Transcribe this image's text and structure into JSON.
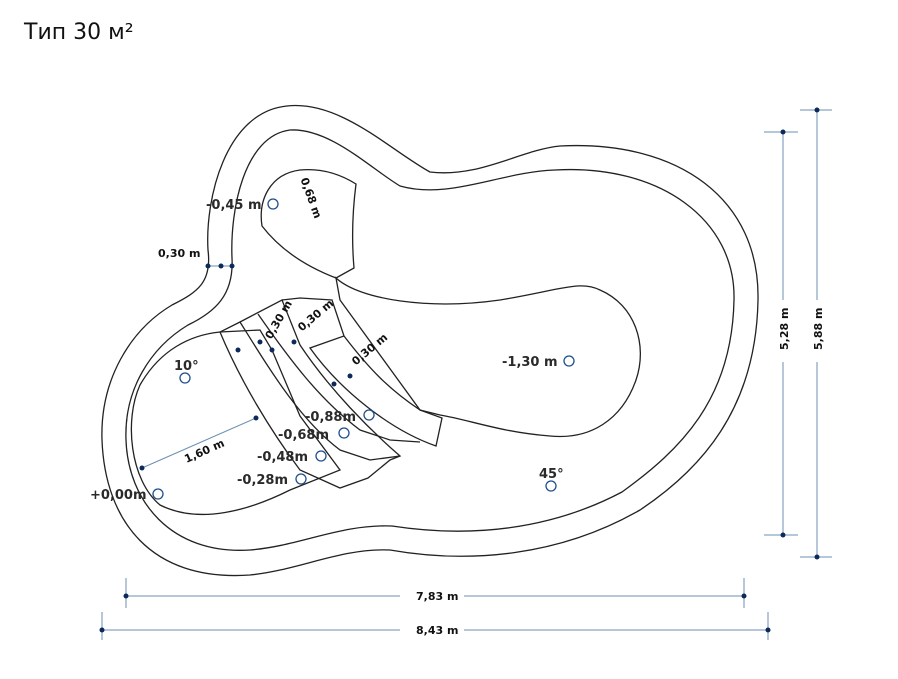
{
  "title": "Тип 30 м²",
  "dimensions": {
    "width_inner": "7,83 m",
    "width_outer": "8,43 m",
    "height_inner": "5,28 m",
    "height_outer": "5,88 m"
  },
  "labels": {
    "wall_thickness": "0,30 m",
    "seat_width": "0,68 m",
    "seat_depth": "-0,45 m",
    "step1_width": "0,30 m",
    "step2_width": "0,30 m",
    "step3_width": "0,30 m",
    "deep_depth": "-1,30 m",
    "slope_angle_shallow": "10°",
    "slope_angle_deep": "45°",
    "shallow_length": "1,60 m",
    "depth_0": "+0,00m",
    "depth_1": "-0,28m",
    "depth_2": "-0,48m",
    "depth_3": "-0,68m",
    "depth_4": "-0,88m"
  }
}
